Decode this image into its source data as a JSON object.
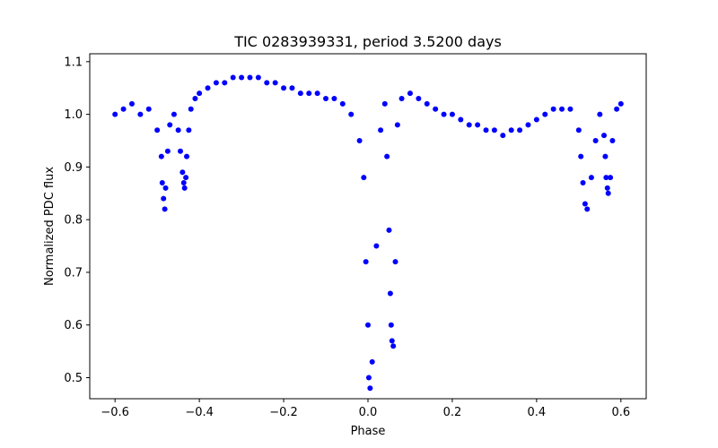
{
  "chart_data": {
    "type": "scatter",
    "title": "TIC 0283939331, period 3.5200 days",
    "xlabel": "Phase",
    "ylabel": "Normalized PDC flux",
    "xlim": [
      -0.66,
      0.66
    ],
    "ylim": [
      0.46,
      1.115
    ],
    "xticks": [
      -0.6,
      -0.4,
      -0.2,
      0.0,
      0.2,
      0.4,
      0.6
    ],
    "xtick_labels": [
      "−0.6",
      "−0.4",
      "−0.2",
      "0.0",
      "0.2",
      "0.4",
      "0.6"
    ],
    "yticks": [
      0.5,
      0.6,
      0.7,
      0.8,
      0.9,
      1.0,
      1.1
    ],
    "ytick_labels": [
      "0.5",
      "0.6",
      "0.7",
      "0.8",
      "0.9",
      "1.0",
      "1.1"
    ],
    "grid": false,
    "marker_color": "#0000ff",
    "series": [
      {
        "name": "PDC flux",
        "x": [
          -0.6,
          -0.58,
          -0.56,
          -0.54,
          -0.52,
          -0.5,
          -0.49,
          -0.488,
          -0.485,
          -0.482,
          -0.48,
          -0.475,
          -0.47,
          -0.46,
          -0.45,
          -0.445,
          -0.44,
          -0.437,
          -0.435,
          -0.432,
          -0.43,
          -0.425,
          -0.42,
          -0.41,
          -0.4,
          -0.38,
          -0.36,
          -0.34,
          -0.32,
          -0.3,
          -0.28,
          -0.26,
          -0.24,
          -0.22,
          -0.2,
          -0.18,
          -0.16,
          -0.14,
          -0.12,
          -0.1,
          -0.08,
          -0.06,
          -0.04,
          -0.02,
          -0.01,
          -0.005,
          0.0,
          0.002,
          0.005,
          0.01,
          0.02,
          0.03,
          0.04,
          0.045,
          0.05,
          0.053,
          0.055,
          0.057,
          0.06,
          0.065,
          0.07,
          0.08,
          0.1,
          0.12,
          0.14,
          0.16,
          0.18,
          0.2,
          0.22,
          0.24,
          0.26,
          0.28,
          0.3,
          0.32,
          0.34,
          0.36,
          0.38,
          0.4,
          0.42,
          0.44,
          0.46,
          0.48,
          0.5,
          0.505,
          0.51,
          0.515,
          0.52,
          0.53,
          0.54,
          0.55,
          0.56,
          0.563,
          0.565,
          0.568,
          0.57,
          0.575,
          0.58,
          0.59,
          0.6
        ],
        "y": [
          1.0,
          1.01,
          1.02,
          1.0,
          1.01,
          0.97,
          0.92,
          0.87,
          0.84,
          0.82,
          0.86,
          0.93,
          0.98,
          1.0,
          0.97,
          0.93,
          0.89,
          0.87,
          0.86,
          0.88,
          0.92,
          0.97,
          1.01,
          1.03,
          1.04,
          1.05,
          1.06,
          1.06,
          1.07,
          1.07,
          1.07,
          1.07,
          1.06,
          1.06,
          1.05,
          1.05,
          1.04,
          1.04,
          1.04,
          1.03,
          1.03,
          1.02,
          1.0,
          0.95,
          0.88,
          0.72,
          0.6,
          0.5,
          0.48,
          0.53,
          0.75,
          0.97,
          1.02,
          0.92,
          0.78,
          0.66,
          0.6,
          0.57,
          0.56,
          0.72,
          0.98,
          1.03,
          1.04,
          1.03,
          1.02,
          1.01,
          1.0,
          1.0,
          0.99,
          0.98,
          0.98,
          0.97,
          0.97,
          0.96,
          0.97,
          0.97,
          0.98,
          0.99,
          1.0,
          1.01,
          1.01,
          1.01,
          0.97,
          0.92,
          0.87,
          0.83,
          0.82,
          0.88,
          0.95,
          1.0,
          0.96,
          0.92,
          0.88,
          0.86,
          0.85,
          0.88,
          0.95,
          1.01,
          1.02
        ]
      }
    ]
  }
}
